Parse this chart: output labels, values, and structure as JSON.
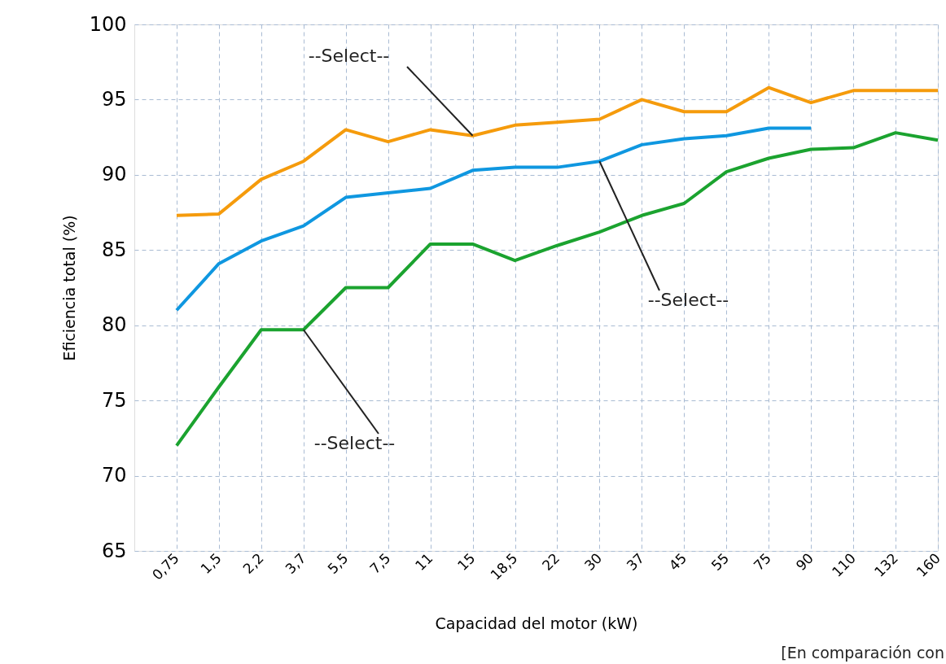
{
  "chart_data": {
    "type": "line",
    "xlabel": "Capacidad del motor (kW)",
    "ylabel": "Eficiencia total (%)",
    "categories": [
      "0,75",
      "1,5",
      "2,2",
      "3,7",
      "5,5",
      "7,5",
      "11",
      "15",
      "18,5",
      "22",
      "30",
      "37",
      "45",
      "55",
      "75",
      "90",
      "110",
      "132",
      "160"
    ],
    "series": [
      {
        "color": "#f59b0c",
        "values": [
          87.3,
          87.4,
          89.7,
          90.9,
          93.0,
          92.2,
          93.0,
          92.6,
          93.3,
          93.5,
          93.7,
          95.0,
          94.2,
          94.2,
          95.8,
          94.8,
          95.6,
          95.6,
          95.6
        ]
      },
      {
        "color": "#0f97e0",
        "values": [
          81.0,
          84.1,
          85.6,
          86.6,
          88.5,
          88.8,
          89.1,
          90.3,
          90.5,
          90.5,
          90.9,
          92.0,
          92.4,
          92.6,
          93.1,
          93.1,
          null,
          null,
          null
        ]
      },
      {
        "color": "#1ba32f",
        "values": [
          72.0,
          75.9,
          79.7,
          79.7,
          82.5,
          82.5,
          85.4,
          85.4,
          84.3,
          85.3,
          86.2,
          87.3,
          88.1,
          90.2,
          91.1,
          91.7,
          91.8,
          92.8,
          92.3
        ]
      }
    ],
    "ylim": [
      65,
      100
    ],
    "yticks": [
      65,
      70,
      75,
      80,
      85,
      90,
      95,
      100
    ],
    "grid": true,
    "legend": false,
    "line_style": "solid",
    "marker": "none",
    "annotations": [
      {
        "text": "--Select--",
        "x": "15",
        "y": 92.6
      },
      {
        "text": "--Select--",
        "x": "30",
        "y": 90.9
      },
      {
        "text": "--Select--",
        "x": "3,7",
        "y": 79.7
      },
      "[En comparación con"
    ]
  }
}
